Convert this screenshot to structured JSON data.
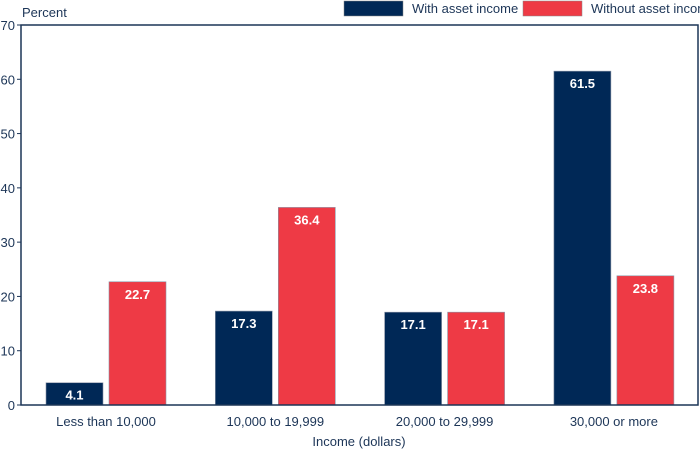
{
  "chart_data": {
    "type": "bar",
    "title": "",
    "ylabel": "Percent",
    "xlabel": "Income (dollars)",
    "ylim": [
      0,
      70
    ],
    "yticks": [
      0,
      10,
      20,
      30,
      40,
      50,
      60,
      70
    ],
    "grid": false,
    "legend_position": "top-right",
    "categories": [
      "Less than 10,000",
      "10,000 to 19,999",
      "20,000 to 29,999",
      "30,000 or more"
    ],
    "series": [
      {
        "name": "With asset income",
        "color": "#002856",
        "values": [
          4.1,
          17.3,
          17.1,
          61.5
        ],
        "labels": [
          "4.1",
          "17.3",
          "17.1",
          "61.5"
        ]
      },
      {
        "name": "Without asset income",
        "color": "#ee3a45",
        "values": [
          22.7,
          36.4,
          17.1,
          23.8
        ],
        "labels": [
          "22.7",
          "36.4",
          "17.1",
          "23.8"
        ]
      }
    ]
  }
}
